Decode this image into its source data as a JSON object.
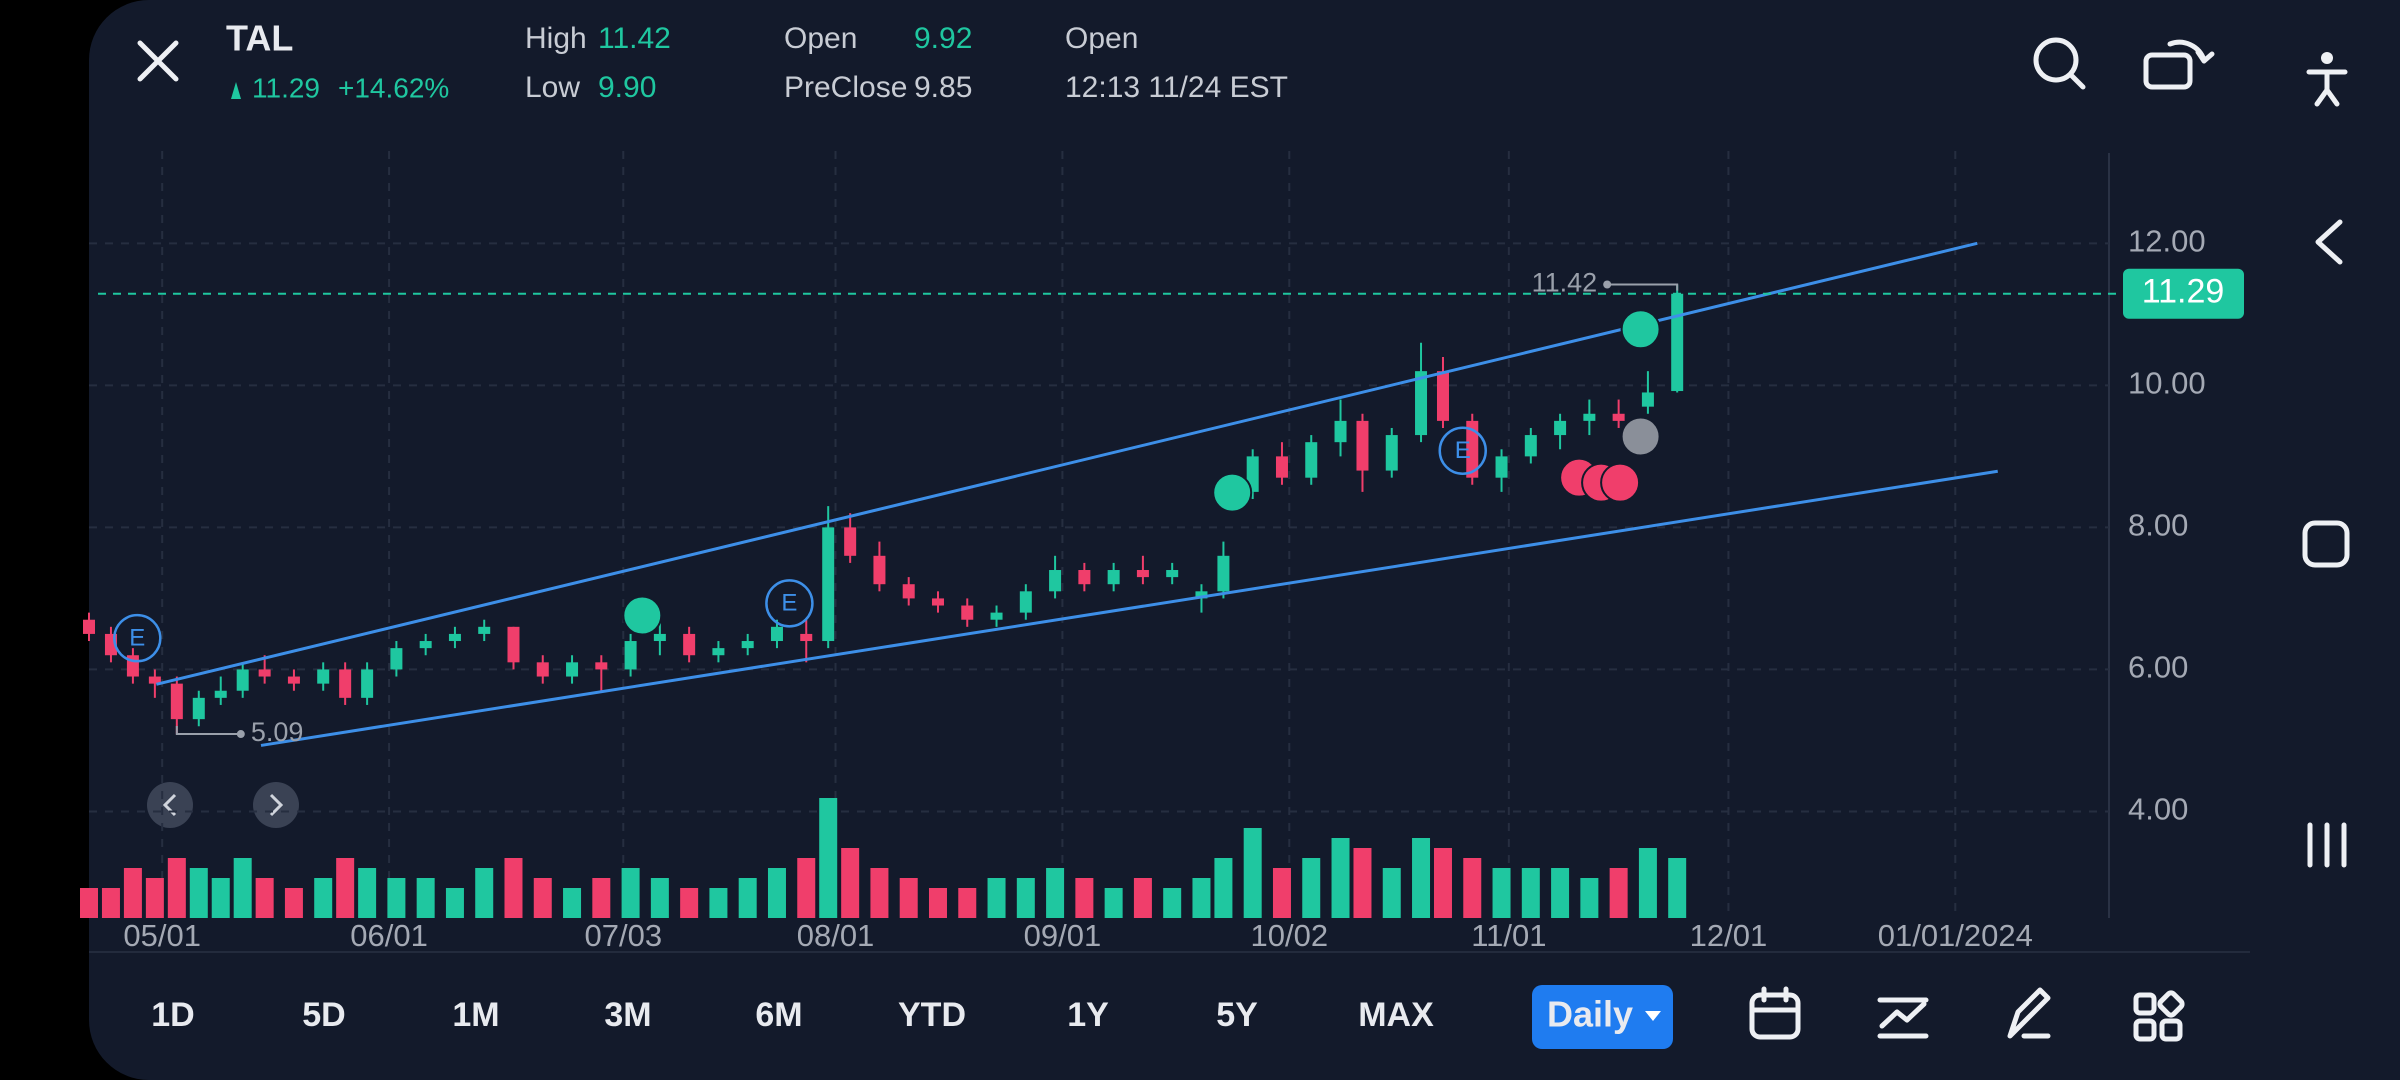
{
  "header": {
    "symbol": "TAL",
    "price": "11.29",
    "change": "+14.62%",
    "high_label": "High",
    "high": "11.42",
    "low_label": "Low",
    "low": "9.90",
    "open_label": "Open",
    "open": "9.92",
    "preclose_label": "PreClose",
    "preclose": "9.85",
    "status": "Open",
    "time": "12:13 11/24 EST"
  },
  "ranges": [
    "1D",
    "5D",
    "1M",
    "3M",
    "6M",
    "YTD",
    "1Y",
    "5Y",
    "MAX"
  ],
  "interval": "Daily",
  "chart_data": {
    "type": "candlestick",
    "x": [
      -10,
      -7,
      -4,
      -1,
      2,
      5,
      8,
      11,
      14,
      18,
      22,
      25,
      28,
      32,
      36,
      40,
      44,
      48,
      52,
      56,
      60,
      64,
      68,
      72,
      76,
      80,
      84,
      88,
      91,
      94,
      98,
      102,
      106,
      110,
      114,
      118,
      122,
      126,
      130,
      134,
      138,
      142,
      145,
      149,
      153,
      157,
      161,
      164,
      168,
      172,
      175,
      179,
      183,
      187,
      191,
      195,
      199,
      203,
      207
    ],
    "open": [
      6.7,
      6.5,
      6.2,
      5.9,
      5.8,
      5.3,
      5.6,
      5.7,
      6.0,
      5.9,
      5.8,
      6.0,
      5.6,
      6.0,
      6.3,
      6.4,
      6.5,
      6.6,
      6.1,
      5.9,
      6.1,
      6.0,
      6.4,
      6.5,
      6.2,
      6.3,
      6.4,
      6.5,
      6.4,
      8.0,
      7.6,
      7.2,
      7.0,
      6.9,
      6.7,
      6.8,
      7.1,
      7.4,
      7.2,
      7.4,
      7.3,
      7.0,
      7.1,
      8.5,
      9.0,
      8.7,
      9.2,
      9.5,
      8.8,
      9.3,
      10.2,
      9.5,
      8.7,
      9.0,
      9.3,
      9.5,
      9.6,
      9.7,
      9.92
    ],
    "high": [
      6.8,
      6.6,
      6.3,
      6.0,
      5.9,
      5.7,
      5.9,
      6.1,
      6.2,
      6.0,
      6.1,
      6.1,
      6.1,
      6.4,
      6.5,
      6.6,
      6.7,
      6.6,
      6.2,
      6.2,
      6.2,
      6.5,
      6.7,
      6.6,
      6.4,
      6.5,
      6.7,
      6.7,
      8.3,
      8.2,
      7.8,
      7.3,
      7.1,
      7.0,
      6.9,
      7.2,
      7.6,
      7.5,
      7.5,
      7.6,
      7.5,
      7.2,
      7.8,
      9.1,
      9.2,
      9.3,
      9.8,
      9.6,
      9.4,
      10.6,
      10.4,
      9.6,
      9.1,
      9.4,
      9.6,
      9.8,
      9.8,
      10.2,
      11.42
    ],
    "low": [
      6.4,
      6.1,
      5.8,
      5.6,
      5.09,
      5.2,
      5.5,
      5.6,
      5.8,
      5.7,
      5.7,
      5.5,
      5.5,
      5.9,
      6.2,
      6.3,
      6.4,
      6.0,
      5.8,
      5.8,
      5.7,
      5.9,
      6.2,
      6.1,
      6.1,
      6.2,
      6.3,
      6.1,
      6.3,
      7.5,
      7.1,
      6.9,
      6.8,
      6.6,
      6.6,
      6.7,
      7.0,
      7.1,
      7.1,
      7.2,
      7.2,
      6.8,
      7.0,
      8.4,
      8.6,
      8.6,
      9.0,
      8.5,
      8.7,
      9.2,
      9.4,
      8.6,
      8.5,
      8.9,
      9.1,
      9.3,
      9.4,
      9.6,
      9.9
    ],
    "close": [
      6.5,
      6.2,
      5.9,
      5.8,
      5.3,
      5.6,
      5.7,
      6.0,
      5.9,
      5.8,
      6.0,
      5.6,
      6.0,
      6.3,
      6.4,
      6.5,
      6.6,
      6.1,
      5.9,
      6.1,
      6.0,
      6.4,
      6.5,
      6.2,
      6.3,
      6.4,
      6.6,
      6.4,
      8.0,
      7.6,
      7.2,
      7.0,
      6.9,
      6.7,
      6.8,
      7.1,
      7.4,
      7.2,
      7.4,
      7.3,
      7.4,
      7.1,
      7.6,
      9.0,
      8.7,
      9.2,
      9.5,
      8.8,
      9.3,
      10.2,
      9.5,
      8.7,
      9.0,
      9.3,
      9.5,
      9.6,
      9.5,
      9.9,
      11.29
    ],
    "volume": [
      3,
      3,
      5,
      4,
      6,
      5,
      4,
      6,
      4,
      3,
      4,
      6,
      5,
      4,
      4,
      3,
      5,
      6,
      4,
      3,
      4,
      5,
      4,
      3,
      3,
      4,
      5,
      6,
      12,
      7,
      5,
      4,
      3,
      3,
      4,
      4,
      5,
      4,
      3,
      4,
      3,
      4,
      6,
      9,
      5,
      6,
      8,
      7,
      5,
      8,
      7,
      6,
      5,
      5,
      5,
      4,
      5,
      7,
      6
    ],
    "up_color": "#1fc7a0",
    "down_color": "#f03e6b",
    "xlim": [
      -10,
      266
    ],
    "ylim": [
      2.5,
      13.3
    ],
    "xticks": [
      {
        "value": 0,
        "label": "05/01"
      },
      {
        "value": 31,
        "label": "06/01"
      },
      {
        "value": 63,
        "label": "07/03"
      },
      {
        "value": 92,
        "label": "08/01"
      },
      {
        "value": 123,
        "label": "09/01"
      },
      {
        "value": 154,
        "label": "10/02"
      },
      {
        "value": 184,
        "label": "11/01"
      },
      {
        "value": 214,
        "label": "12/01"
      },
      {
        "value": 245,
        "label": "01/01/2024"
      }
    ],
    "yticks": [
      {
        "value": 4,
        "label": "4.00"
      },
      {
        "value": 6,
        "label": "6.00"
      },
      {
        "value": 8,
        "label": "8.00"
      },
      {
        "value": 10,
        "label": "10.00"
      },
      {
        "value": 12,
        "label": "12.00"
      }
    ],
    "grid": true,
    "trendline_color": "#3d8fe8",
    "trendlines": [
      {
        "x": [
          -0.8,
          248
        ],
        "y": [
          5.79,
          12.0
        ]
      },
      {
        "x": [
          13.5,
          250.8
        ],
        "y": [
          4.93,
          8.79
        ]
      }
    ],
    "last_price": {
      "value": 11.29,
      "label": "11.29"
    },
    "high_marker": {
      "x": 207,
      "value": 11.42,
      "label": "11.42"
    },
    "low_marker": {
      "x": 2,
      "value": 5.09,
      "label": "5.09"
    },
    "events": [
      {
        "x": -3.4,
        "y": 6.44,
        "label": "E"
      },
      {
        "x": 85.7,
        "y": 6.93,
        "label": "E"
      },
      {
        "x": 177.7,
        "y": 9.08,
        "label": "E"
      }
    ],
    "signals": [
      {
        "x": 65.6,
        "y": 6.76,
        "color": "#1fc7a0"
      },
      {
        "x": 146.2,
        "y": 8.49,
        "color": "#1fc7a0"
      },
      {
        "x": 202,
        "y": 10.79,
        "color": "#1fc7a0"
      },
      {
        "x": 193.6,
        "y": 8.7,
        "color": "#f03e6b"
      },
      {
        "x": 196.6,
        "y": 8.63,
        "color": "#f03e6b"
      },
      {
        "x": 199.2,
        "y": 8.63,
        "color": "#f03e6b"
      },
      {
        "x": 202,
        "y": 9.28,
        "color": "#8a8f99"
      }
    ]
  }
}
